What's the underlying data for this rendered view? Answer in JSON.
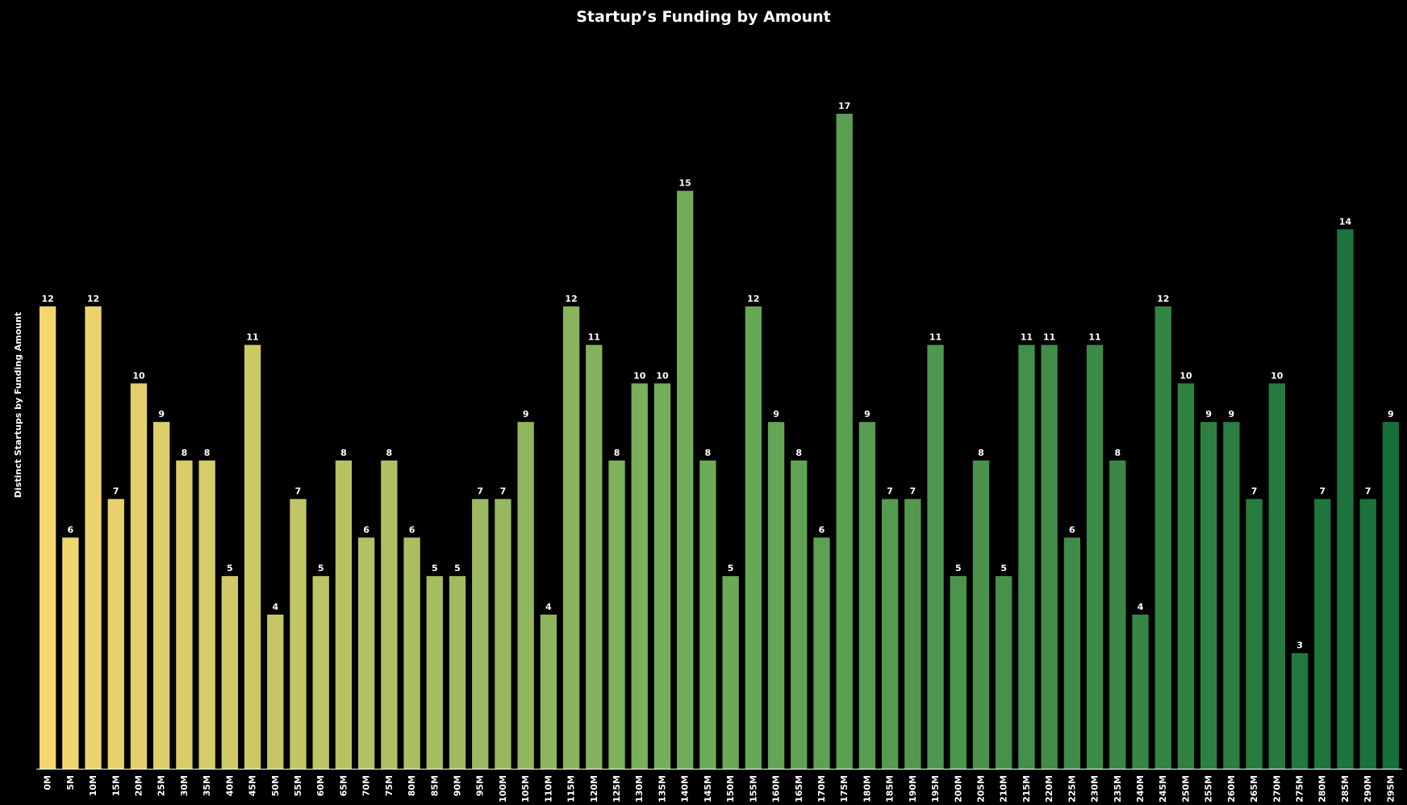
{
  "chart_data": {
    "type": "bar",
    "title": "Startup’s Funding by Amount",
    "xlabel": "",
    "ylabel": "Distinct Startups by Funding Amount",
    "categories": [
      "0M",
      "5M",
      "10M",
      "15M",
      "20M",
      "25M",
      "30M",
      "35M",
      "40M",
      "45M",
      "50M",
      "55M",
      "60M",
      "65M",
      "70M",
      "75M",
      "80M",
      "85M",
      "90M",
      "95M",
      "100M",
      "105M",
      "110M",
      "115M",
      "120M",
      "125M",
      "130M",
      "135M",
      "140M",
      "145M",
      "150M",
      "155M",
      "160M",
      "165M",
      "170M",
      "175M",
      "180M",
      "185M",
      "190M",
      "195M",
      "200M",
      "205M",
      "210M",
      "215M",
      "220M",
      "225M",
      "230M",
      "235M",
      "240M",
      "245M",
      "250M",
      "255M",
      "260M",
      "265M",
      "270M",
      "275M",
      "280M",
      "285M",
      "290M",
      "295M"
    ],
    "values": [
      12,
      6,
      12,
      7,
      10,
      9,
      8,
      8,
      5,
      11,
      4,
      7,
      5,
      8,
      6,
      8,
      6,
      5,
      5,
      7,
      7,
      9,
      4,
      12,
      11,
      8,
      10,
      10,
      15,
      8,
      5,
      12,
      9,
      8,
      6,
      17,
      9,
      7,
      7,
      11,
      5,
      8,
      5,
      11,
      11,
      6,
      11,
      8,
      4,
      12,
      10,
      9,
      9,
      7,
      10,
      3,
      7,
      14,
      7,
      9
    ],
    "ylim": [
      0,
      17
    ],
    "grid": false,
    "data_labels": true,
    "colors": {
      "start": "#f5d56e",
      "mid": "#6aaa58",
      "end": "#17703a",
      "background": "#000000",
      "text": "#ffffff"
    }
  }
}
